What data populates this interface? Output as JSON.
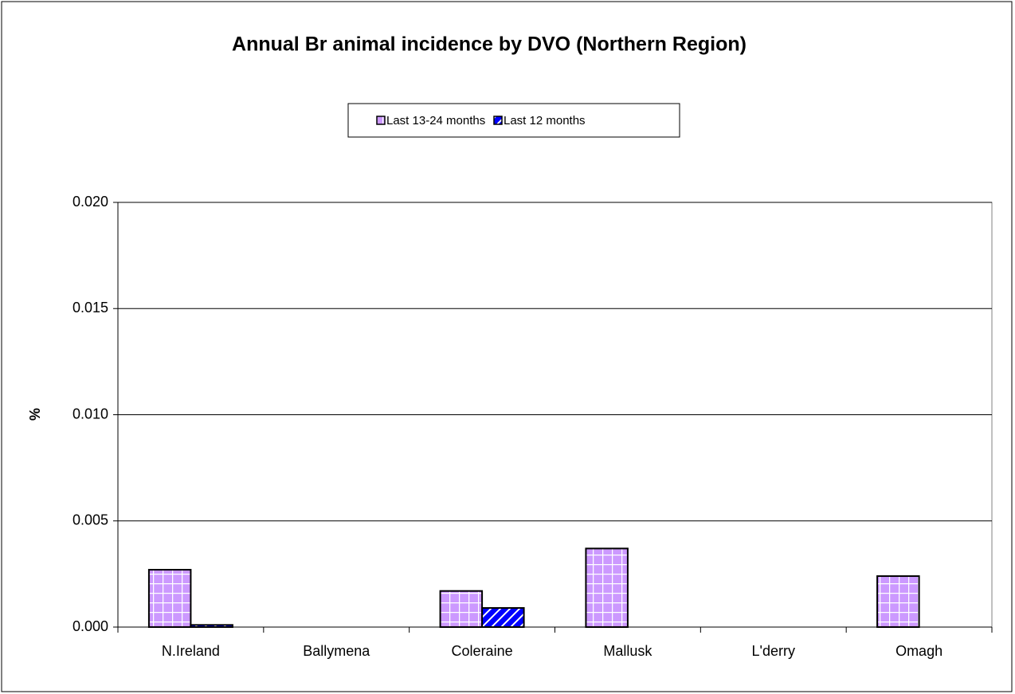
{
  "chart_data": {
    "type": "bar",
    "title": "Annual Br animal incidence by DVO (Northern Region)",
    "y_label": "%",
    "categories": [
      "N.Ireland",
      "Ballymena",
      "Coleraine",
      "Mallusk",
      "L'derry",
      "Omagh"
    ],
    "series": [
      {
        "name": "Last 13-24 months",
        "color": "#cc99ff",
        "values": [
          0.0027,
          0,
          0.0017,
          0.0037,
          0,
          0.0024
        ]
      },
      {
        "name": "Last 12 months",
        "color": "#0000ff",
        "values": [
          0.0001,
          0,
          0.0009,
          0,
          0,
          0
        ]
      }
    ],
    "ylim": [
      0,
      0.02
    ],
    "yticks": [
      {
        "value": 0,
        "label": "0.000"
      },
      {
        "value": 0.005,
        "label": "0.005"
      },
      {
        "value": 0.01,
        "label": "0.010"
      },
      {
        "value": 0.015,
        "label": "0.015"
      },
      {
        "value": 0.02,
        "label": "0.020"
      }
    ],
    "grid": true,
    "legend": "top"
  }
}
